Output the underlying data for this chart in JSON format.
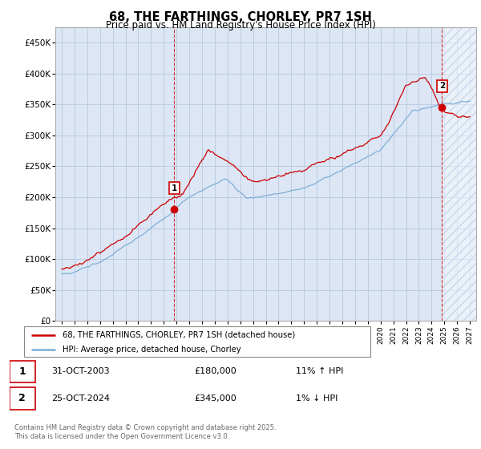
{
  "title": "68, THE FARTHINGS, CHORLEY, PR7 1SH",
  "subtitle": "Price paid vs. HM Land Registry's House Price Index (HPI)",
  "ylim": [
    0,
    475000
  ],
  "xlim_years": [
    1994.5,
    2027.5
  ],
  "sale1_year": 2003.83,
  "sale1_price": 180000,
  "sale1_label": "1",
  "sale2_year": 2024.82,
  "sale2_price": 345000,
  "sale2_label": "2",
  "legend_line1": "68, THE FARTHINGS, CHORLEY, PR7 1SH (detached house)",
  "legend_line2": "HPI: Average price, detached house, Chorley",
  "annot1_date": "31-OCT-2003",
  "annot1_price": "£180,000",
  "annot1_hpi": "11% ↑ HPI",
  "annot2_date": "25-OCT-2024",
  "annot2_price": "£345,000",
  "annot2_hpi": "1% ↓ HPI",
  "footer": "Contains HM Land Registry data © Crown copyright and database right 2025.\nThis data is licensed under the Open Government Licence v3.0.",
  "line_color_red": "#cc0000",
  "line_color_blue": "#7aadd4",
  "background_color": "#ffffff",
  "chart_bg_color": "#dce6f5",
  "grid_color": "#b8c8e0",
  "hatch_color": "#c8d8ea"
}
